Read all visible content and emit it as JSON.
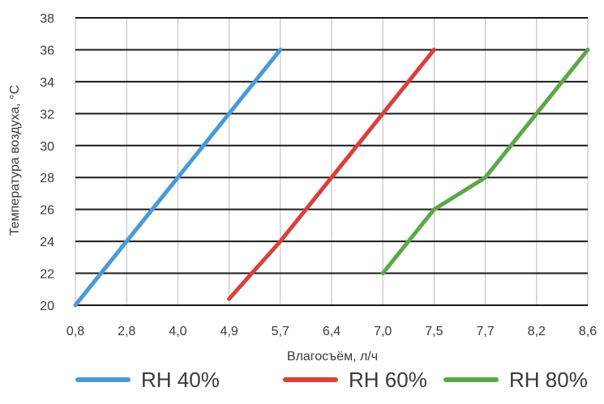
{
  "chart_data": {
    "type": "line",
    "title": "",
    "xlabel": "Влагосъём, л/ч",
    "ylabel": "Температура воздуха, °C",
    "x_categories": [
      "0,8",
      "2,8",
      "4,0",
      "4,9",
      "5,7",
      "6,4",
      "7,0",
      "7,5",
      "7,7",
      "8,2",
      "8,6"
    ],
    "y_ticks": [
      "20",
      "22",
      "24",
      "26",
      "28",
      "30",
      "32",
      "34",
      "36",
      "38"
    ],
    "ylim": [
      20,
      38
    ],
    "grid": {
      "horizontal": true,
      "vertical": true
    },
    "legend_position": "bottom",
    "series": [
      {
        "name": "RH 40%",
        "color": "#4a9ad8",
        "points": [
          {
            "x": 0.8,
            "y": 20
          },
          {
            "x": 5.7,
            "y": 36
          }
        ]
      },
      {
        "name": "RH 60%",
        "color": "#d9403a",
        "points": [
          {
            "x": 4.9,
            "y": 20.4
          },
          {
            "x": 5.7,
            "y": 24
          },
          {
            "x": 7.5,
            "y": 36
          }
        ]
      },
      {
        "name": "RH 80%",
        "color": "#5ba84a",
        "points": [
          {
            "x": 7.0,
            "y": 22
          },
          {
            "x": 7.5,
            "y": 26
          },
          {
            "x": 7.7,
            "y": 28
          },
          {
            "x": 8.6,
            "y": 36
          }
        ]
      }
    ]
  }
}
